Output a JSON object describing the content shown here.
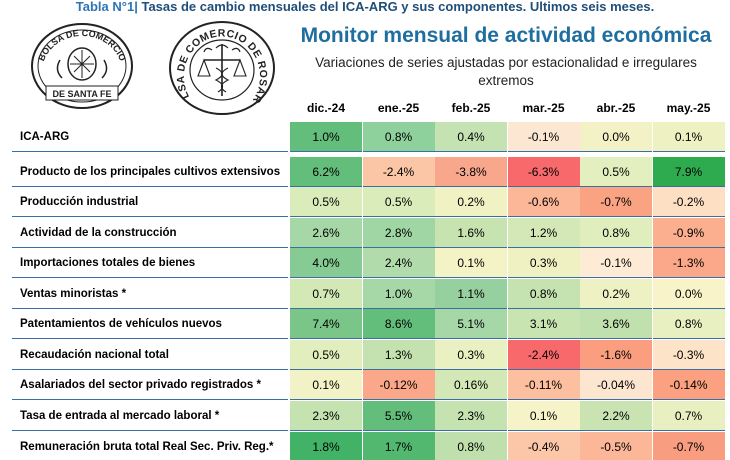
{
  "header": {
    "table_label": "Tabla N°1|",
    "table_caption": "Tasas de cambio mensuales del ICA-ARG y sus componentes. Ultimos seis meses.",
    "logos": [
      {
        "text_top": "BOLSA DE COMERCIO",
        "text_bottom": "DE SANTA FE"
      },
      {
        "text": "BOLSA DE COMERCIO DE ROSARIO"
      }
    ],
    "title": "Monitor mensual de actividad económica",
    "subtitle_line1": "Variaciones de series ajustadas por estacionalidad e irregulares",
    "subtitle_line2": "extremos"
  },
  "columns": [
    "dic.-24",
    "ene.-25",
    "feb.-25",
    "mar.-25",
    "abr.-25",
    "may.-25"
  ],
  "rows": [
    {
      "label": "ICA-ARG",
      "values": [
        "1.0%",
        "0.8%",
        "0.4%",
        "-0.1%",
        "0.0%",
        "0.1%"
      ],
      "colors": [
        "#63be7b",
        "#8fd19c",
        "#c5e2b2",
        "#fce7d2",
        "#f2f2c6",
        "#eef1c2"
      ]
    },
    {
      "label": "Producto de los principales cultivos extensivos",
      "values": [
        "6.2%",
        "-2.4%",
        "-3.8%",
        "-6.3%",
        "0.5%",
        "7.9%"
      ],
      "colors": [
        "#63be7b",
        "#fbc6a6",
        "#f8a78c",
        "#f8696b",
        "#e4efbf",
        "#2eab4f"
      ]
    },
    {
      "label": "Producción industrial",
      "values": [
        "0.5%",
        "0.5%",
        "0.2%",
        "-0.6%",
        "-0.7%",
        "-0.2%"
      ],
      "colors": [
        "#dbecbb",
        "#dbecbb",
        "#f0f2c4",
        "#fbb797",
        "#f9a383",
        "#fde0c4"
      ]
    },
    {
      "label": "Actividad de la construcción",
      "values": [
        "2.6%",
        "2.8%",
        "1.6%",
        "1.2%",
        "0.8%",
        "-0.9%"
      ],
      "colors": [
        "#a6d8a7",
        "#a0d5a4",
        "#c7e3b0",
        "#d3e8b6",
        "#e0edbc",
        "#fbaf8f"
      ]
    },
    {
      "label": "Importaciones totales de bienes",
      "values": [
        "4.0%",
        "2.4%",
        "0.1%",
        "0.3%",
        "-0.1%",
        "-1.3%"
      ],
      "colors": [
        "#86cb93",
        "#b2dbab",
        "#f4f3c6",
        "#eff1c3",
        "#fdebd6",
        "#fba88a"
      ]
    },
    {
      "label": "Ventas minoristas *",
      "values": [
        "0.7%",
        "1.0%",
        "1.1%",
        "0.8%",
        "0.2%",
        "0.0%"
      ],
      "colors": [
        "#d2e8b5",
        "#a6d7a6",
        "#96d09e",
        "#c5e2b1",
        "#eef1c3",
        "#f8f3c8"
      ]
    },
    {
      "label": "Patentamientos de vehículos nuevos",
      "values": [
        "7.4%",
        "8.6%",
        "5.1%",
        "3.1%",
        "3.6%",
        "0.8%"
      ],
      "colors": [
        "#7ac688",
        "#63be7b",
        "#a6d8a7",
        "#c8e4b1",
        "#c0e1ae",
        "#e8efc0"
      ]
    },
    {
      "label": "Recaudación nacional total",
      "values": [
        "0.5%",
        "1.3%",
        "0.3%",
        "-2.4%",
        "-1.6%",
        "-0.3%"
      ],
      "colors": [
        "#e2eebd",
        "#c3e2af",
        "#e9f0c1",
        "#f8696b",
        "#fb9e80",
        "#fde3c8"
      ]
    },
    {
      "label": "Asalariados del sector privado registrados *",
      "values": [
        "0.1%",
        "-0.12%",
        "0.16%",
        "-0.11%",
        "-0.04%",
        "-0.14%"
      ],
      "colors": [
        "#f1f2c5",
        "#fba88a",
        "#d3e8b6",
        "#fcc0a0",
        "#fde6cf",
        "#fba080"
      ]
    },
    {
      "label": "Tasa de entrada al mercado laboral *",
      "values": [
        "2.3%",
        "5.5%",
        "2.3%",
        "0.1%",
        "2.2%",
        "0.7%"
      ],
      "colors": [
        "#c5e2b1",
        "#63be7b",
        "#c5e2b1",
        "#f7f3c8",
        "#c9e4b2",
        "#e8efc0"
      ]
    },
    {
      "label": "Remuneración bruta total Real Sec. Priv. Reg.*",
      "values": [
        "1.8%",
        "1.7%",
        "0.8%",
        "-0.4%",
        "-0.5%",
        "-0.7%"
      ],
      "colors": [
        "#42b366",
        "#52b86f",
        "#bfe0ad",
        "#fcc7a8",
        "#fbb797",
        "#f99d80"
      ]
    }
  ]
}
